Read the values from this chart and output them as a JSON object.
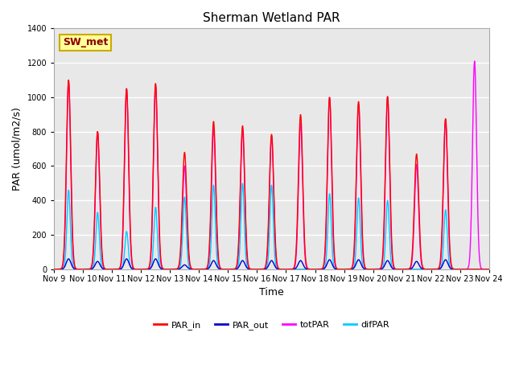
{
  "title": "Sherman Wetland PAR",
  "ylabel": "PAR (umol/m2/s)",
  "xlabel": "Time",
  "annotation": "SW_met",
  "ylim": [
    0,
    1400
  ],
  "background_color": "#e8e8e8",
  "grid_color": "white",
  "colors": {
    "PAR_in": "#ff0000",
    "PAR_out": "#0000cc",
    "totPAR": "#ff00ff",
    "difPAR": "#00ccff"
  },
  "x_tick_labels": [
    "Nov 9",
    "Nov 10",
    "Nov 11",
    "Nov 12",
    "Nov 13",
    "Nov 14",
    "Nov 15",
    "Nov 16",
    "Nov 17",
    "Nov 18",
    "Nov 19",
    "Nov 20",
    "Nov 21",
    "Nov 22",
    "Nov 23",
    "Nov 24"
  ],
  "days": 15,
  "peaks": {
    "PAR_in": [
      1100,
      800,
      1050,
      1080,
      680,
      860,
      835,
      785,
      900,
      1000,
      975,
      1005,
      670,
      875,
      0
    ],
    "totPAR": [
      1090,
      800,
      1050,
      1070,
      600,
      820,
      810,
      775,
      850,
      1000,
      960,
      1000,
      610,
      870,
      1210
    ],
    "difPAR": [
      460,
      330,
      220,
      360,
      420,
      490,
      500,
      490,
      0,
      440,
      415,
      400,
      0,
      345,
      0
    ],
    "PAR_out": [
      60,
      45,
      60,
      60,
      25,
      50,
      50,
      50,
      50,
      55,
      55,
      50,
      45,
      55,
      0
    ]
  }
}
